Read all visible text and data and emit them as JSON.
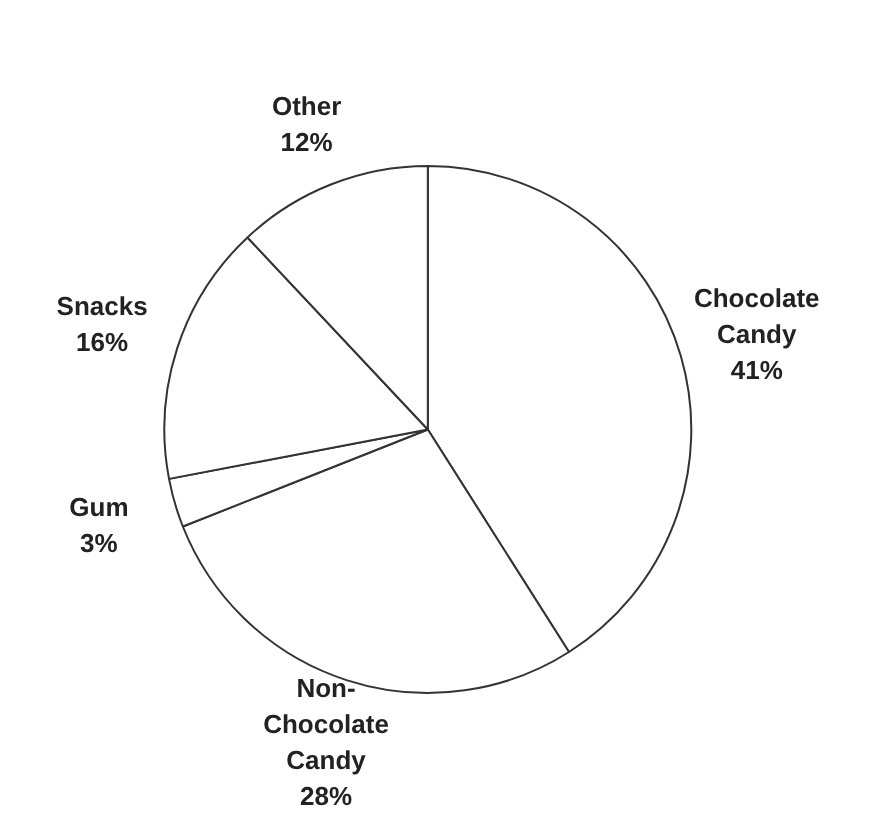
{
  "chart_data": {
    "type": "pie",
    "categories": [
      "Chocolate Candy",
      "Non-Chocolate Candy",
      "Gum",
      "Snacks",
      "Other"
    ],
    "values": [
      41,
      28,
      3,
      16,
      12
    ],
    "colors": [
      "#ffffff",
      "#ffffff",
      "#ffffff",
      "#ffffff",
      "#ffffff"
    ],
    "value_labels": [
      "41%",
      "28%",
      "3%",
      "16%",
      "12%"
    ]
  }
}
